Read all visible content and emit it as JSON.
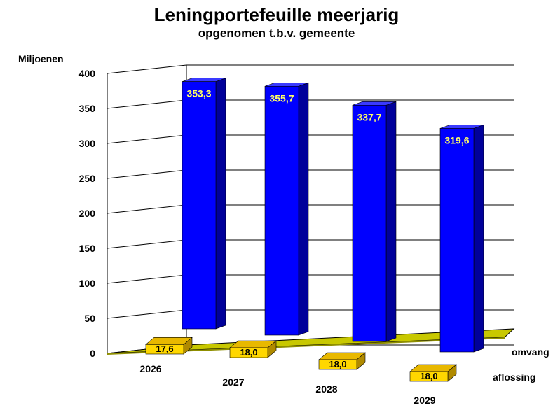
{
  "chart_data": {
    "type": "bar",
    "title": "Leningportefeuille meerjarig",
    "subtitle": "opgenomen t.b.v. gemeente",
    "ylabel": "Miljoenen",
    "ylim": [
      0,
      400
    ],
    "yticks": [
      "0",
      "50",
      "100",
      "150",
      "200",
      "250",
      "300",
      "350",
      "400"
    ],
    "categories": [
      "2026",
      "2027",
      "2028",
      "2029"
    ],
    "series": [
      {
        "name": "omvang",
        "values": [
          353.3,
          355.7,
          337.7,
          319.6
        ],
        "labels": [
          "353,3",
          "355,7",
          "337,7",
          "319,6"
        ],
        "color": "#0000ff"
      },
      {
        "name": "aflossing",
        "values": [
          17.6,
          18.0,
          18.0,
          18.0
        ],
        "labels": [
          "17,6",
          "18,0",
          "18,0",
          "18,0"
        ],
        "color": "#ffd700"
      }
    ],
    "floor_color": "#c8c800",
    "grid": true,
    "legend": "series names on depth axis (right)"
  }
}
